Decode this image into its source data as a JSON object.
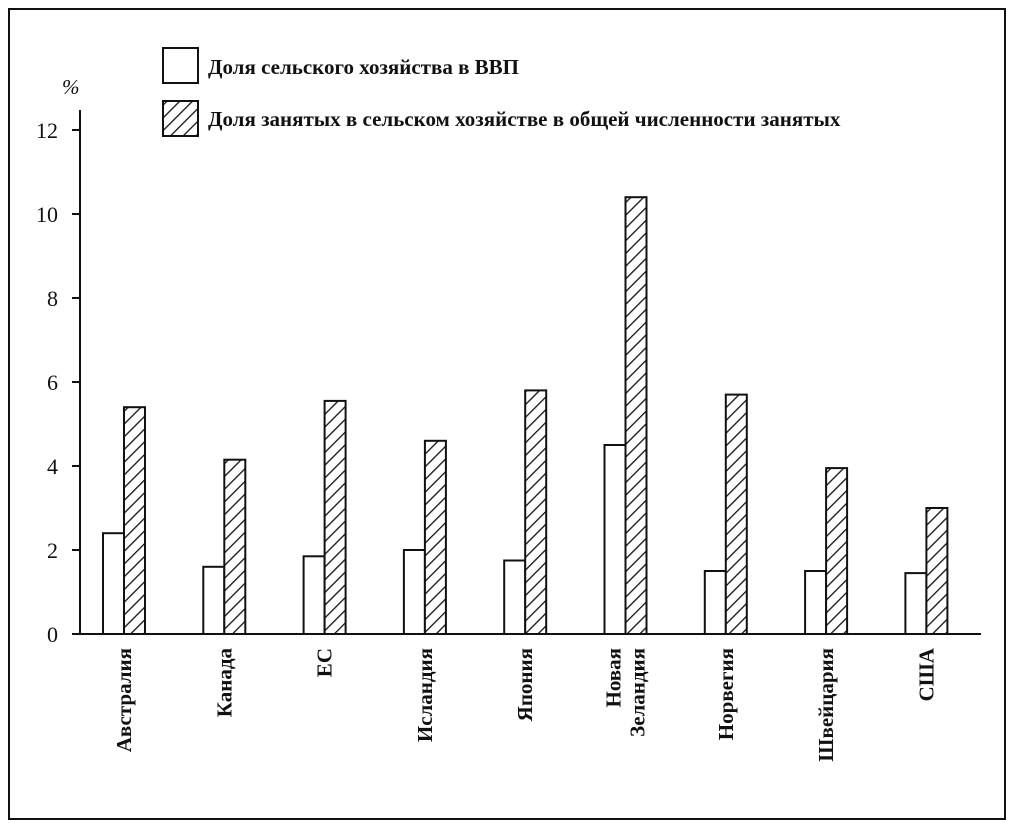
{
  "chart_data": {
    "type": "bar",
    "unit_label": "%",
    "categories": [
      [
        "Австралия"
      ],
      [
        "Канада"
      ],
      [
        "ЕС"
      ],
      [
        "Исландия"
      ],
      [
        "Япония"
      ],
      [
        "Новая",
        "Зеландия"
      ],
      [
        "Норвегия"
      ],
      [
        "Швейцария"
      ],
      [
        "США"
      ]
    ],
    "series": [
      {
        "name": "Доля сельского хозяйства в ВВП",
        "pattern": "plain",
        "values": [
          2.4,
          1.6,
          1.85,
          2.0,
          1.75,
          4.5,
          1.5,
          1.5,
          1.45
        ]
      },
      {
        "name": "Доля занятых в сельском хозяйстве в общей численности занятых",
        "pattern": "hatched",
        "values": [
          5.4,
          4.15,
          5.55,
          4.6,
          5.8,
          10.4,
          5.7,
          3.95,
          3.0
        ]
      }
    ],
    "y_ticks": [
      0,
      2,
      4,
      6,
      8,
      10,
      12
    ],
    "ylim": [
      0,
      12
    ],
    "grid": false,
    "legend_position": "top",
    "colors": {
      "stroke": "#111111",
      "fill": "#ffffff"
    }
  }
}
